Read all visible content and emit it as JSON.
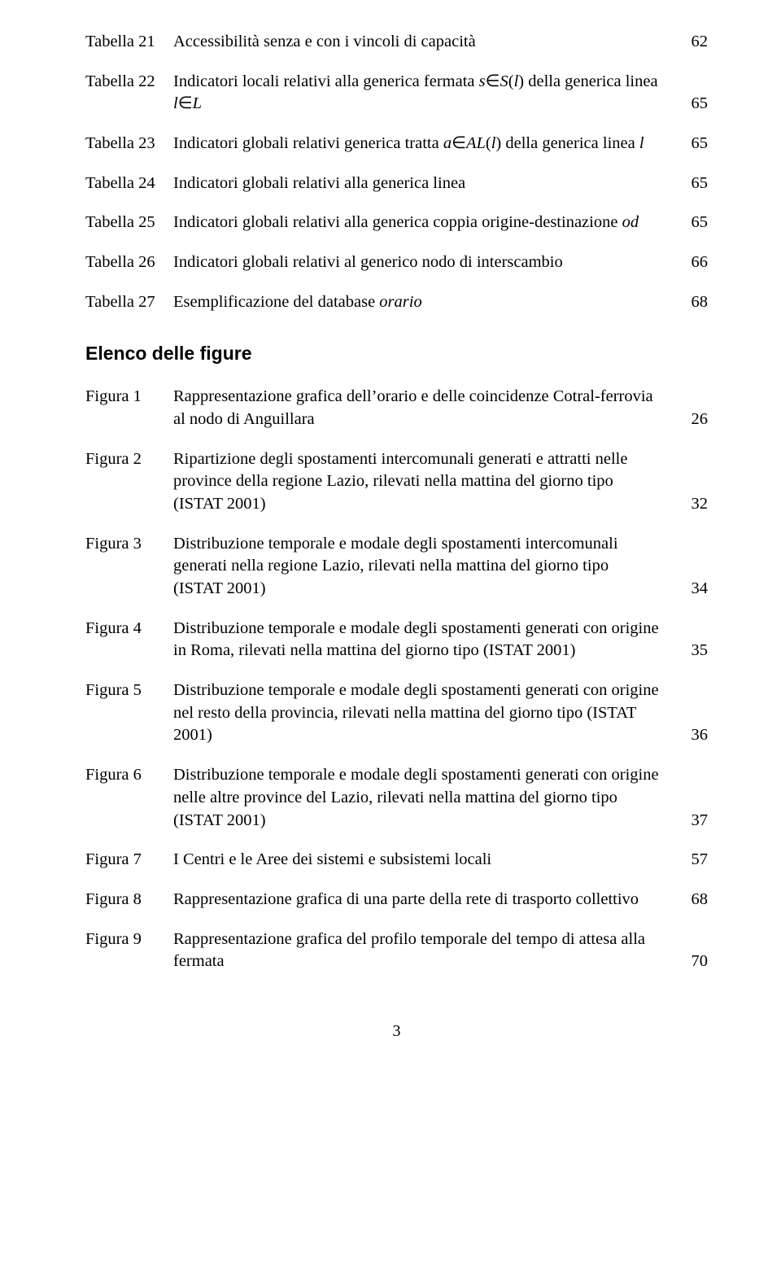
{
  "tables": [
    {
      "label": "Tabella 21",
      "desc_html": "Accessibilità senza e con i vincoli di capacità",
      "page": "62"
    },
    {
      "label": "Tabella 22",
      "desc_html": "Indicatori locali relativi alla generica fermata <span class='ital'>s</span>∈<span class='ital'>S</span>(<span class='ital'>l</span>) della generica linea <span class='ital'>l</span>∈<span class='ital'>L</span>",
      "page": "65"
    },
    {
      "label": "Tabella 23",
      "desc_html": "Indicatori globali relativi generica tratta <span class='ital'>a</span>∈<span class='ital'>AL</span>(<span class='ital'>l</span>) della generica linea <span class='ital'>l</span>",
      "page": "65"
    },
    {
      "label": "Tabella 24",
      "desc_html": "Indicatori globali relativi alla generica linea",
      "page": "65"
    },
    {
      "label": "Tabella 25",
      "desc_html": "Indicatori globali relativi alla generica coppia origine-destinazione <span class='ital'>od</span>",
      "page": "65"
    },
    {
      "label": "Tabella 26",
      "desc_html": "Indicatori globali relativi al generico nodo di interscambio",
      "page": "66"
    },
    {
      "label": "Tabella 27",
      "desc_html": "Esemplificazione del database <span class='ital'>orario</span>",
      "page": "68"
    }
  ],
  "figures_heading": "Elenco delle figure",
  "figures": [
    {
      "label": "Figura 1",
      "desc_html": "Rappresentazione grafica dell’orario e delle coincidenze Cotral-ferrovia al nodo di Anguillara",
      "page": "26"
    },
    {
      "label": "Figura 2",
      "desc_html": "Ripartizione degli spostamenti intercomunali generati e attratti nelle province della regione Lazio, rilevati nella mattina del giorno tipo (ISTAT 2001)",
      "page": "32"
    },
    {
      "label": "Figura 3",
      "desc_html": "Distribuzione temporale e modale degli spostamenti intercomunali generati nella regione Lazio, rilevati nella mattina del giorno tipo (ISTAT 2001)",
      "page": "34"
    },
    {
      "label": "Figura 4",
      "desc_html": "Distribuzione temporale e modale degli spostamenti generati con origine in Roma, rilevati nella mattina del giorno tipo (ISTAT 2001)",
      "page": "35"
    },
    {
      "label": "Figura 5",
      "desc_html": "Distribuzione temporale e modale degli spostamenti generati con origine nel resto della provincia, rilevati nella mattina del giorno tipo (ISTAT 2001)",
      "page": "36"
    },
    {
      "label": "Figura 6",
      "desc_html": "Distribuzione temporale e modale degli spostamenti generati con origine nelle altre province del Lazio, rilevati nella mattina del giorno tipo (ISTAT 2001)",
      "page": "37"
    },
    {
      "label": "Figura 7",
      "desc_html": "I Centri e le Aree dei sistemi e subsistemi locali",
      "page": "57"
    },
    {
      "label": "Figura 8",
      "desc_html": "Rappresentazione grafica di una parte della rete di trasporto collettivo",
      "page": "68"
    },
    {
      "label": "Figura 9",
      "desc_html": "Rappresentazione grafica del profilo temporale del tempo di attesa alla fermata",
      "page": "70"
    }
  ],
  "page_number": "3"
}
